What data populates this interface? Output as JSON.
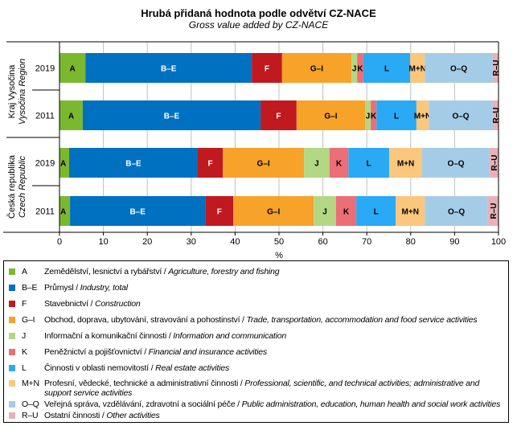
{
  "chart_data": {
    "type": "bar",
    "orientation": "horizontal-stacked-100",
    "title": "Hrubá přidaná hodnota podle odvětví CZ-NACE",
    "subtitle": "Gross value  added  by CZ-NACE",
    "xlabel": "%",
    "xlim": [
      0,
      100
    ],
    "xticks": [
      "0",
      "10",
      "20",
      "30",
      "40",
      "50",
      "60",
      "70",
      "80",
      "90",
      "100"
    ],
    "grid": true,
    "groups": [
      {
        "name_cs": "Kraj Vysočina",
        "name_en": "Vysočina Region",
        "rows": [
          "2019",
          "2011"
        ]
      },
      {
        "name_cs": "Česká republika",
        "name_en": "Czech Republic",
        "rows": [
          "2019",
          "2011"
        ]
      }
    ],
    "categories": [
      "Kraj Vysočina 2019",
      "Kraj Vysočina 2011",
      "Česká republika 2019",
      "Česká republika 2011"
    ],
    "series": [
      {
        "code": "A",
        "color": "#7cb82f",
        "label_color": "#000000",
        "values": [
          5.9,
          5.3,
          2.2,
          2.4
        ]
      },
      {
        "code": "B–E",
        "color": "#0070c0",
        "label_color": "#ffffff",
        "values": [
          37.9,
          40.5,
          29.3,
          30.8
        ]
      },
      {
        "code": "F",
        "color": "#c0191f",
        "label_color": "#ffffff",
        "values": [
          6.9,
          8.2,
          5.7,
          6.4
        ]
      },
      {
        "code": "G–I",
        "color": "#f7a229",
        "label_color": "#000000",
        "values": [
          15.8,
          15.6,
          18.5,
          18.3
        ]
      },
      {
        "code": "J",
        "color": "#b3d783",
        "label_color": "#000000",
        "values": [
          1.3,
          1.3,
          5.8,
          5.1
        ]
      },
      {
        "code": "K",
        "color": "#ec6e76",
        "label_color": "#000000",
        "values": [
          1.4,
          1.3,
          4.3,
          4.6
        ]
      },
      {
        "code": "L",
        "color": "#2aa9f4",
        "label_color": "#000000",
        "values": [
          10.7,
          9.1,
          9.3,
          9.0
        ]
      },
      {
        "code": "M+N",
        "color": "#fac77c",
        "label_color": "#000000",
        "values": [
          3.3,
          2.8,
          7.5,
          6.6
        ]
      },
      {
        "code": "O–Q",
        "color": "#a4cce6",
        "label_color": "#000000",
        "values": [
          15.5,
          14.6,
          15.4,
          14.4
        ]
      },
      {
        "code": "R–U",
        "color": "#e8b1b8",
        "label_color": "#000000",
        "values": [
          1.3,
          1.3,
          2.0,
          2.4
        ]
      }
    ],
    "legend_position": "bottom",
    "legend": [
      {
        "code": "A",
        "cs": "Zemědělství, lesnictví a rybářství /",
        "en": "Agriculture, forestry and fishing"
      },
      {
        "code": "B–E",
        "cs": "Průmysl /",
        "en": "Industry, total"
      },
      {
        "code": "F",
        "cs": "Stavebnictví /",
        "en": "Construction"
      },
      {
        "code": "G–I",
        "cs": "Obchod, doprava, ubytování, stravování a pohostinství /",
        "en": "Trade, transportation, accommodation and food service activities"
      },
      {
        "code": "J",
        "cs": "Informační a komunikační  činnosti /",
        "en": "Information and communication"
      },
      {
        "code": "K",
        "cs": "Peněžnictví a pojišťovnictví /",
        "en": "Financial and insurance activities"
      },
      {
        "code": "L",
        "cs": "Činnosti v oblasti nemovitostí /",
        "en": "Real estate activities"
      },
      {
        "code": "M+N",
        "cs": "Profesní, vědecké, technické a administrativní činnosti /",
        "en": "Professional, scientific, and technical activities; administrative and",
        "en2": "support service activities"
      },
      {
        "code": "O–Q",
        "cs": "Veřejná správa, vzdělávání, zdravotní a sociální péče /",
        "en": "Public administration, education, human health and social work activities"
      },
      {
        "code": "R–U",
        "cs": "Ostatní činnosti /",
        "en": "Other activities"
      }
    ]
  }
}
